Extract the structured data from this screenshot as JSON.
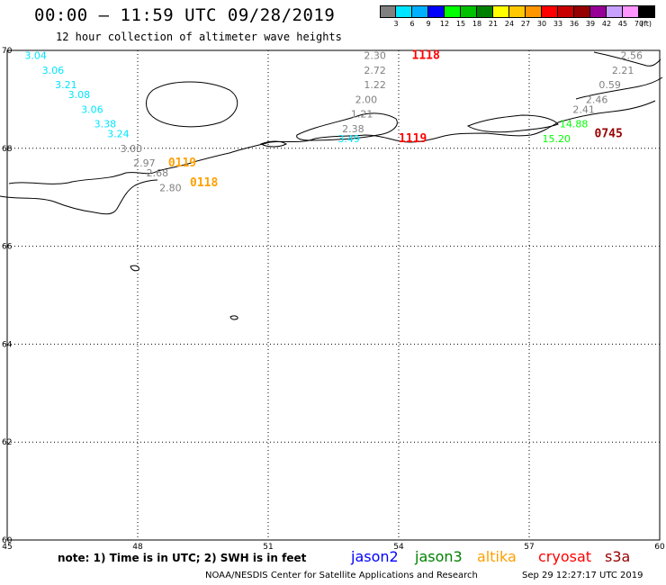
{
  "header": {
    "title": "00:00 – 11:59 UTC 09/28/2019",
    "subtitle": "12 hour collection of altimeter wave heights"
  },
  "color_scale": {
    "unit": "(ft)",
    "labels": [
      "3",
      "6",
      "9",
      "12",
      "15",
      "18",
      "21",
      "24",
      "27",
      "30",
      "33",
      "36",
      "39",
      "42",
      "45",
      "70"
    ],
    "colors": [
      "#808080",
      "#00e5ff",
      "#00b0ff",
      "#0000ff",
      "#00ff00",
      "#00c000",
      "#008000",
      "#ffff00",
      "#ffc800",
      "#ff9600",
      "#ff0000",
      "#c80000",
      "#960000",
      "#960096",
      "#c8a0ff",
      "#ff96ff",
      "#000000"
    ]
  },
  "axes": {
    "lon_ticks": [
      "45",
      "48",
      "51",
      "54",
      "57",
      "60"
    ],
    "lat_ticks": [
      "70",
      "68",
      "66",
      "64",
      "62",
      "60"
    ]
  },
  "observations": [
    {
      "text": "3.04",
      "lon": 45.4,
      "lat": 69.9,
      "color": "#00e5ff"
    },
    {
      "text": "3.06",
      "lon": 45.8,
      "lat": 69.6,
      "color": "#00e5ff"
    },
    {
      "text": "3.21",
      "lon": 46.1,
      "lat": 69.3,
      "color": "#00e5ff"
    },
    {
      "text": "3.08",
      "lon": 46.4,
      "lat": 69.1,
      "color": "#00e5ff"
    },
    {
      "text": "3.06",
      "lon": 46.7,
      "lat": 68.8,
      "color": "#00e5ff"
    },
    {
      "text": "3.38",
      "lon": 47.0,
      "lat": 68.5,
      "color": "#00e5ff"
    },
    {
      "text": "3.24",
      "lon": 47.3,
      "lat": 68.3,
      "color": "#00e5ff"
    },
    {
      "text": "3.00",
      "lon": 47.6,
      "lat": 68.0,
      "color": "#808080"
    },
    {
      "text": "2.97",
      "lon": 47.9,
      "lat": 67.7,
      "color": "#808080"
    },
    {
      "text": "2.68",
      "lon": 48.2,
      "lat": 67.5,
      "color": "#808080"
    },
    {
      "text": "2.80",
      "lon": 48.5,
      "lat": 67.2,
      "color": "#808080"
    },
    {
      "text": "2.30",
      "lon": 53.2,
      "lat": 69.9,
      "color": "#808080"
    },
    {
      "text": "2.72",
      "lon": 53.2,
      "lat": 69.6,
      "color": "#808080"
    },
    {
      "text": "1.22",
      "lon": 53.2,
      "lat": 69.3,
      "color": "#808080"
    },
    {
      "text": "2.00",
      "lon": 53.0,
      "lat": 69.0,
      "color": "#808080"
    },
    {
      "text": "1.21",
      "lon": 52.9,
      "lat": 68.7,
      "color": "#808080"
    },
    {
      "text": "2.38",
      "lon": 52.7,
      "lat": 68.4,
      "color": "#808080"
    },
    {
      "text": "3.49",
      "lon": 52.6,
      "lat": 68.2,
      "color": "#00e5ff"
    },
    {
      "text": "2.56",
      "lon": 59.1,
      "lat": 69.9,
      "color": "#808080"
    },
    {
      "text": "2.21",
      "lon": 58.9,
      "lat": 69.6,
      "color": "#808080"
    },
    {
      "text": "0.59",
      "lon": 58.6,
      "lat": 69.3,
      "color": "#808080"
    },
    {
      "text": "2.46",
      "lon": 58.3,
      "lat": 69.0,
      "color": "#808080"
    },
    {
      "text": "2.41",
      "lon": 58.0,
      "lat": 68.8,
      "color": "#808080"
    },
    {
      "text": "14.88",
      "lon": 57.7,
      "lat": 68.5,
      "color": "#00ff00"
    },
    {
      "text": "15.20",
      "lon": 57.3,
      "lat": 68.2,
      "color": "#00ff00"
    }
  ],
  "pass_times": [
    {
      "text": "0119",
      "lon": 48.7,
      "lat": 67.7,
      "color": "#ffa000"
    },
    {
      "text": "0118",
      "lon": 49.2,
      "lat": 67.3,
      "color": "#ffa000"
    },
    {
      "text": "1118",
      "lon": 54.3,
      "lat": 69.9,
      "color": "#ff0000"
    },
    {
      "text": "1119",
      "lon": 54.0,
      "lat": 68.2,
      "color": "#ff0000"
    },
    {
      "text": "0745",
      "lon": 58.5,
      "lat": 68.3,
      "color": "#960000"
    }
  ],
  "legend": [
    {
      "name": "jason2",
      "color": "#0000ff"
    },
    {
      "name": "jason3",
      "color": "#008000"
    },
    {
      "name": "altika",
      "color": "#ffa000"
    },
    {
      "name": "cryosat",
      "color": "#ff0000"
    },
    {
      "name": "s3a",
      "color": "#960000"
    }
  ],
  "note": "note:  1) Time is in UTC;  2) SWH is in feet",
  "footer": {
    "credit": "NOAA/NESDIS Center for Satellite Applications and Research",
    "timestamp": "Sep 29 12:27:17 UTC 2019"
  }
}
